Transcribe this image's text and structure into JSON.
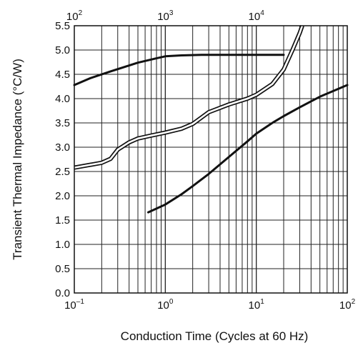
{
  "chart_data": {
    "type": "line",
    "xlabel": "Conduction Time (Cycles at 60 Hz)",
    "ylabel": "Transient Thermal Impedance  (°C/W)",
    "x_scale": "log",
    "xlim": [
      0.1,
      100
    ],
    "ylim": [
      0,
      5.5
    ],
    "grid": true,
    "bottom_x_ticks": [
      {
        "value": 0.1,
        "base": "10",
        "exp": "–1"
      },
      {
        "value": 1,
        "base": "10",
        "exp": "0"
      },
      {
        "value": 10,
        "base": "10",
        "exp": "1"
      },
      {
        "value": 100,
        "base": "10",
        "exp": "2"
      }
    ],
    "top_x_axis": {
      "scale": "log",
      "bottom_equivalent_range": [
        0.1,
        44.4
      ],
      "top_range": [
        100,
        44400
      ],
      "ticks": [
        {
          "value": 100,
          "base": "10",
          "exp": "2"
        },
        {
          "value": 1000,
          "base": "10",
          "exp": "3"
        },
        {
          "value": 10000,
          "base": "10",
          "exp": "4"
        }
      ]
    },
    "y_ticks": [
      "0.0",
      "0.5",
      "1.0",
      "1.5",
      "2.0",
      "2.5",
      "3.0",
      "3.5",
      "4.0",
      "4.5",
      "5.0",
      "5.5"
    ],
    "series": [
      {
        "style": "solid",
        "axis": "top",
        "x": [
          100,
          150,
          250,
          500,
          800,
          1000,
          1500,
          2500,
          5000,
          10000,
          20000
        ],
        "y": [
          4.28,
          4.42,
          4.56,
          4.74,
          4.83,
          4.87,
          4.89,
          4.9,
          4.9,
          4.9,
          4.9
        ]
      },
      {
        "style": "double",
        "axis": "bottom",
        "x": [
          0.1,
          0.2,
          0.25,
          0.3,
          0.4,
          0.5,
          0.7,
          1,
          1.5,
          2,
          3,
          5,
          8,
          10,
          15,
          20,
          25,
          30,
          32
        ],
        "y": [
          2.58,
          2.68,
          2.76,
          2.95,
          3.1,
          3.18,
          3.24,
          3.3,
          3.38,
          3.48,
          3.72,
          3.88,
          4.0,
          4.08,
          4.3,
          4.6,
          5.0,
          5.35,
          5.5
        ]
      },
      {
        "style": "solid",
        "axis": "bottom",
        "x": [
          0.65,
          1,
          1.5,
          2,
          3,
          5,
          8,
          10,
          15,
          20,
          30,
          50,
          100
        ],
        "y": [
          1.66,
          1.82,
          2.03,
          2.2,
          2.45,
          2.8,
          3.12,
          3.28,
          3.5,
          3.64,
          3.82,
          4.04,
          4.28
        ]
      }
    ]
  }
}
